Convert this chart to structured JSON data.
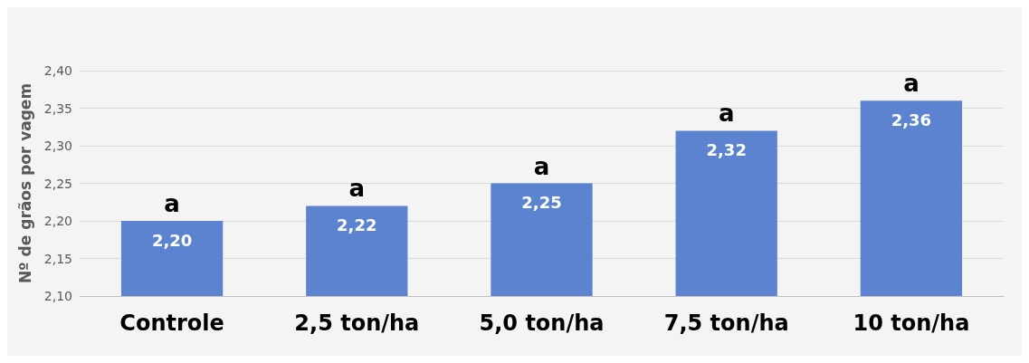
{
  "chart_data": {
    "type": "bar",
    "ylabel": "Nº de grãos por vagem",
    "categories": [
      "Controle",
      "2,5 ton/ha",
      "5,0 ton/ha",
      "7,5 ton/ha",
      "10 ton/ha"
    ],
    "values": [
      2.2,
      2.22,
      2.25,
      2.32,
      2.36
    ],
    "value_labels": [
      "2,20",
      "2,22",
      "2,25",
      "2,32",
      "2,36"
    ],
    "color": "#5b83d0",
    "ylim": [
      2.1,
      2.4
    ],
    "yticks": [
      {
        "value": 2.1,
        "label": "2,10"
      },
      {
        "value": 2.15,
        "label": "2,15"
      },
      {
        "value": 2.2,
        "label": "2,20"
      },
      {
        "value": 2.25,
        "label": "2,25"
      },
      {
        "value": 2.3,
        "label": "2,30"
      },
      {
        "value": 2.35,
        "label": "2,35"
      },
      {
        "value": 2.4,
        "label": "2,40"
      }
    ],
    "grid": "y",
    "annotations": [
      {
        "text": "a",
        "x": "Controle",
        "y": 2.2
      },
      {
        "text": "a",
        "x": "2,5 ton/ha",
        "y": 2.22
      },
      {
        "text": "a",
        "x": "5,0 ton/ha",
        "y": 2.25
      },
      {
        "text": "a",
        "x": "7,5 ton/ha",
        "y": 2.32
      },
      {
        "text": "a",
        "x": "10 ton/ha",
        "y": 2.36
      }
    ]
  }
}
